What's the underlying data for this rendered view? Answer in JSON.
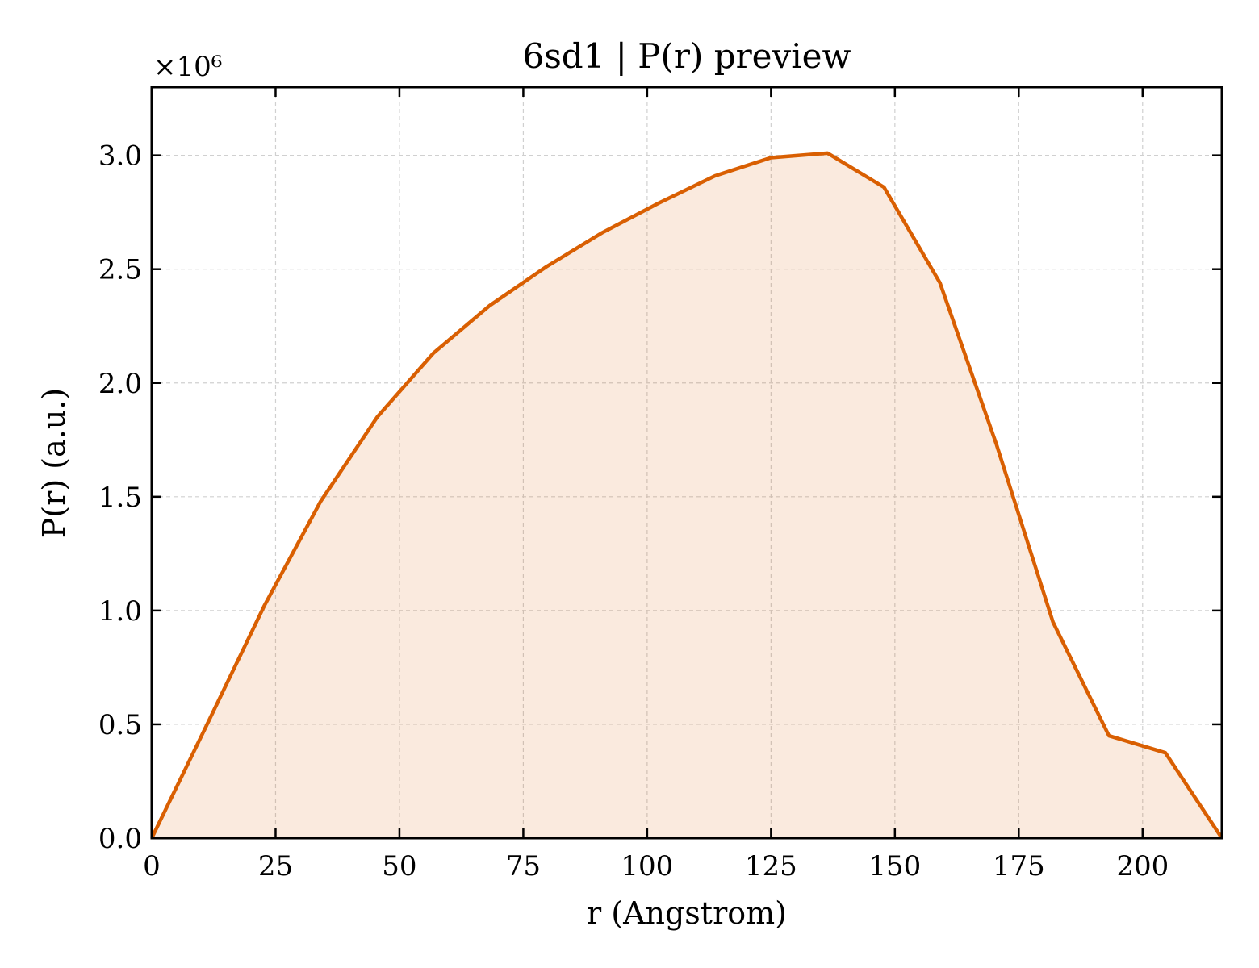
{
  "chart_data": {
    "type": "area",
    "title": "6sd1 | P(r) preview",
    "xlabel": "r (Angstrom)",
    "ylabel": "P(r) (a.u.)",
    "y_scale_factor_label": "×10⁶",
    "y_scale_factor": 1000000,
    "xlim": [
      0,
      216
    ],
    "ylim": [
      0,
      3.3
    ],
    "x_ticks": [
      0,
      25,
      50,
      75,
      100,
      125,
      150,
      175,
      200
    ],
    "x_tick_labels": [
      "0",
      "25",
      "50",
      "75",
      "100",
      "125",
      "150",
      "175",
      "200"
    ],
    "y_ticks": [
      0.0,
      0.5,
      1.0,
      1.5,
      2.0,
      2.5,
      3.0
    ],
    "y_tick_labels": [
      "0.0",
      "0.5",
      "1.0",
      "1.5",
      "2.0",
      "2.5",
      "3.0"
    ],
    "grid": true,
    "line_color": "#d95f02",
    "fill_color": "#d95f02",
    "series": [
      {
        "x": [
          0,
          11.4,
          22.7,
          34.1,
          45.5,
          56.8,
          68.2,
          79.6,
          90.9,
          102.3,
          113.7,
          125.0,
          136.4,
          147.8,
          159.1,
          170.5,
          181.9,
          193.2,
          204.6,
          216.0
        ],
        "y": [
          0.0,
          0.51,
          1.02,
          1.48,
          1.85,
          2.13,
          2.34,
          2.51,
          2.66,
          2.79,
          2.91,
          2.99,
          3.01,
          2.86,
          2.44,
          1.73,
          0.95,
          0.45,
          0.375,
          0.0
        ]
      }
    ]
  }
}
